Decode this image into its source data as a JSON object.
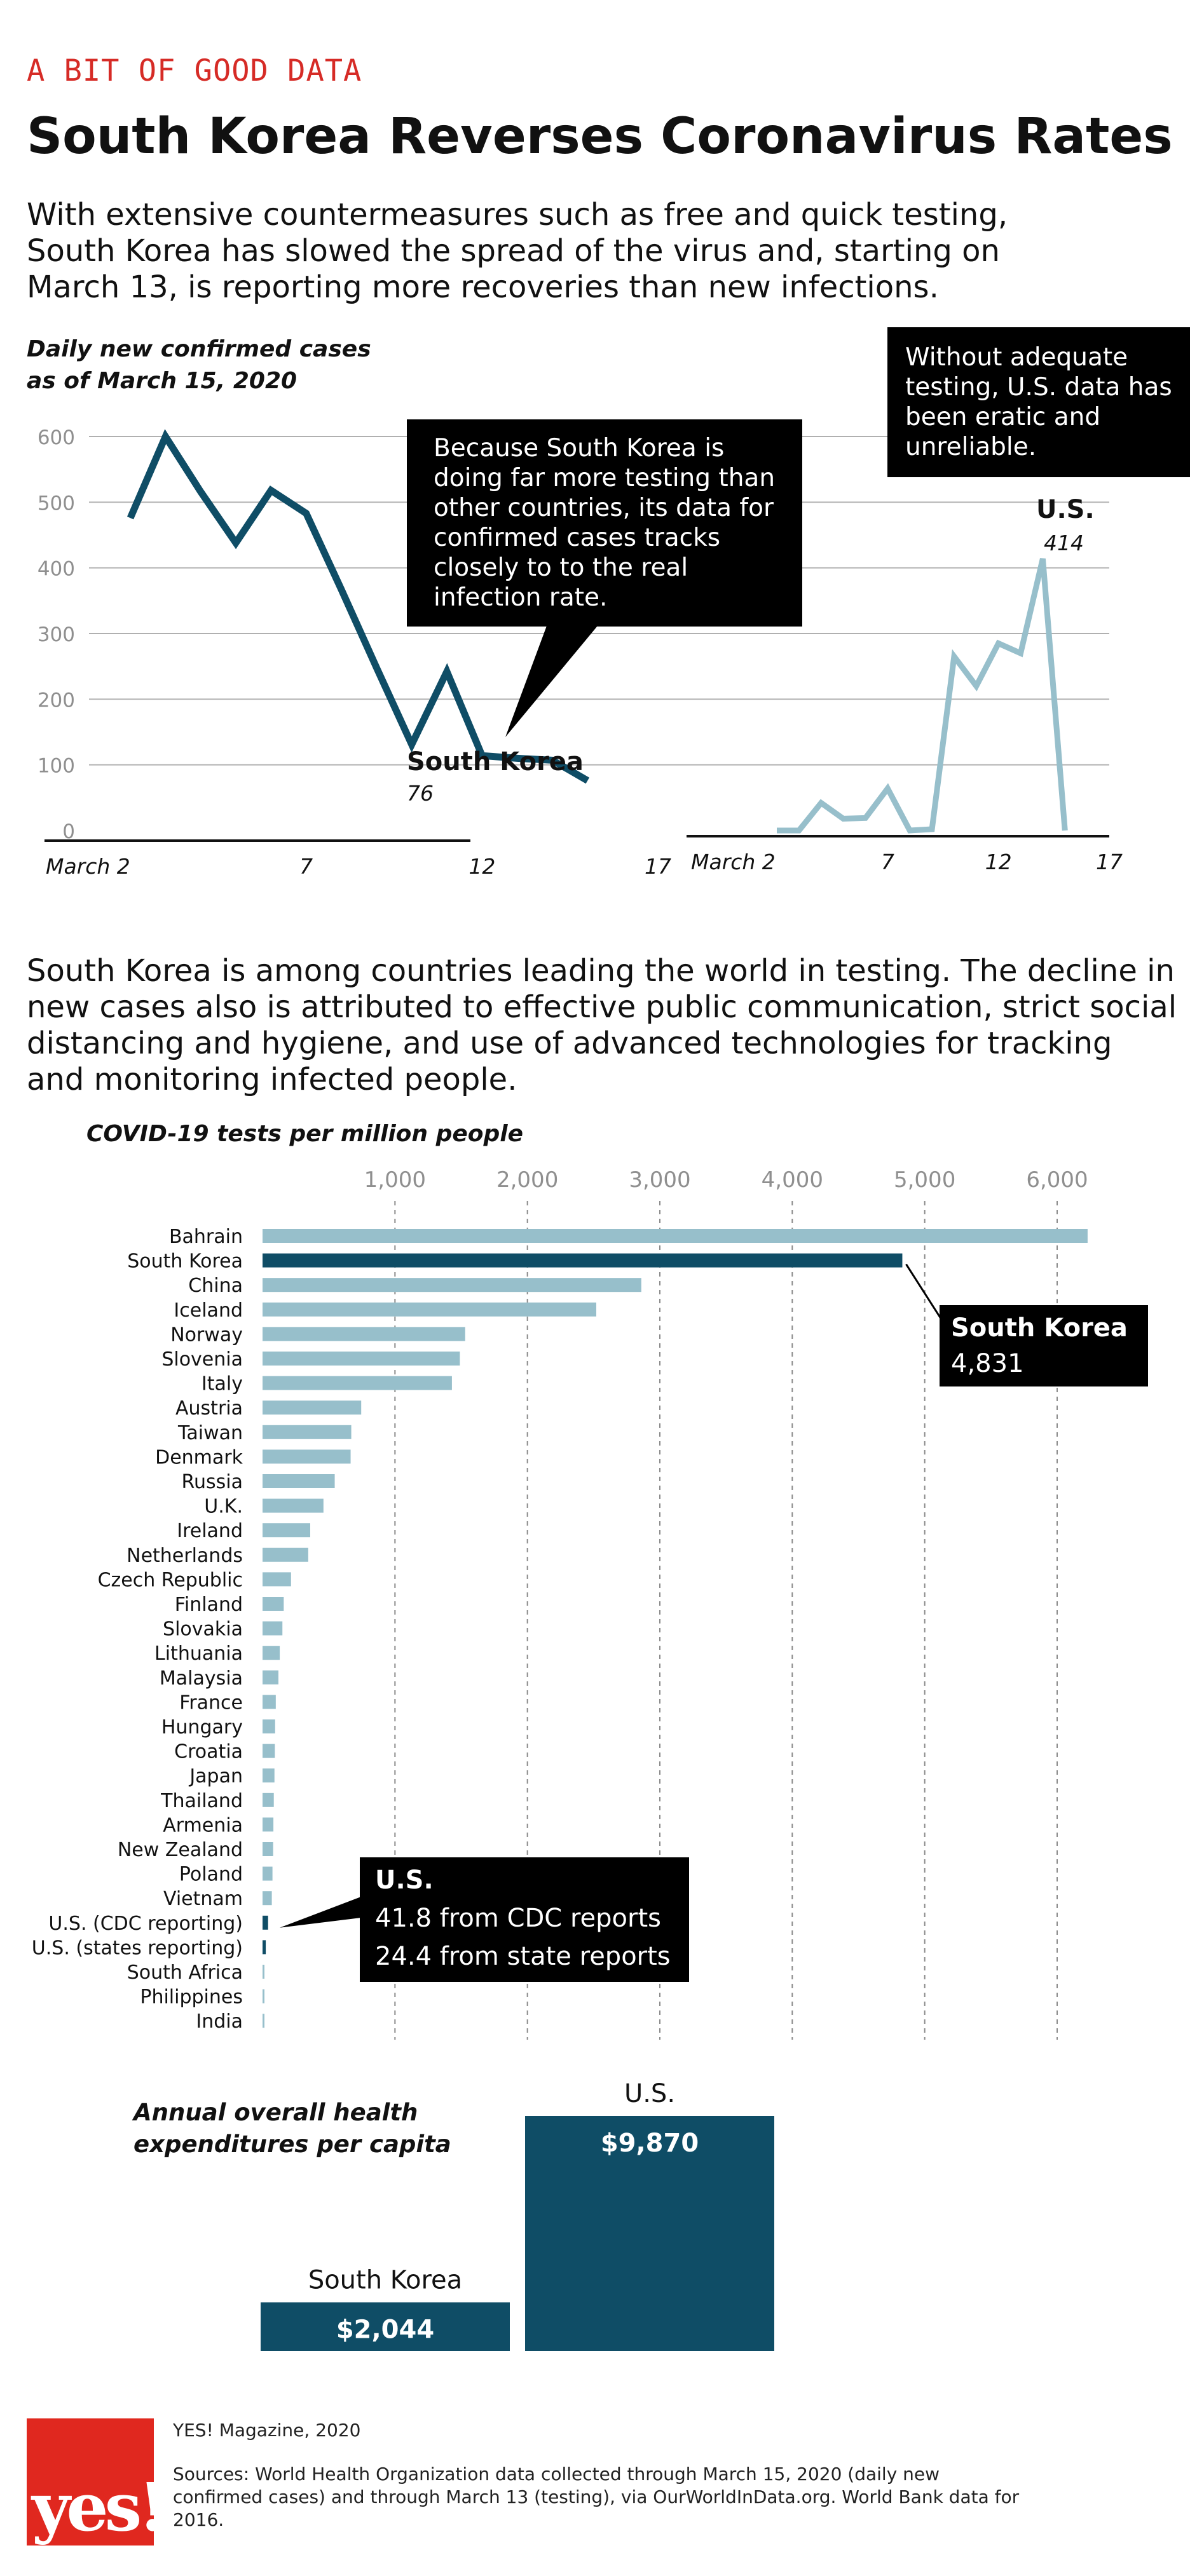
{
  "kicker": "A BIT OF GOOD DATA",
  "title": "South Korea Reverses Coronavirus Rates",
  "intro": "With extensive countermeasures such as free and quick testing, South Korea has slowed the spread of the virus and, starting on March 13, is reporting more recoveries than new infections.",
  "daily_chart": {
    "subtitle_line1": "Daily new confirmed cases",
    "subtitle_line2": "as of March 15, 2020",
    "callout_sk": "Because South Korea is doing far more testing than other countries, its data for confirmed cases tracks closely to to the real infection rate.",
    "callout_us": "Without adequate testing, U.S. data has been eratic and unreliable.",
    "sk_label": "South Korea",
    "sk_last": "76",
    "us_label": "U.S.",
    "us_peak": "414"
  },
  "paragraph2": "South Korea is among countries leading the world in testing. The decline in new cases also is attributed to effective public communication, strict social distancing and hygiene, and use of advanced technologies for tracking and monitoring infected people.",
  "tests_chart": {
    "subtitle": "COVID-19 tests per million people",
    "callout_sk_title": "South Korea",
    "callout_sk_value": "4,831",
    "callout_us_title": "U.S.",
    "callout_us_line1": "41.8 from CDC reports",
    "callout_us_line2": "24.4 from state reports"
  },
  "health_chart": {
    "subtitle_line1": "Annual overall health",
    "subtitle_line2": "expenditures per capita",
    "sk_label": "South Korea",
    "sk_value": "$2,044",
    "us_label": "U.S.",
    "us_value": "$9,870"
  },
  "footer": {
    "logo": "yes!",
    "publisher": "YES! Magazine, 2020",
    "sources": "Sources: World Health Organization data collected through March 15, 2020 (daily new confirmed cases) and through March 13 (testing), via OurWorldInData.org. World Bank data for 2016."
  },
  "colors": {
    "dark": "#0f4d66",
    "light": "#97bfcb",
    "red": "#d62b26",
    "grid": "#aaaaaa"
  },
  "chart_data": [
    {
      "type": "line",
      "title": "Daily new confirmed cases",
      "subtitle": "as of March 15, 2020",
      "xlabel": "",
      "ylabel": "",
      "ylim": [
        0,
        600
      ],
      "yticks": [
        0,
        100,
        200,
        300,
        400,
        500,
        600
      ],
      "xticks": [
        {
          "x": 2,
          "label": "March 2"
        },
        {
          "x": 7,
          "label": "7"
        },
        {
          "x": 12,
          "label": "12"
        },
        {
          "x": 17,
          "label": "17"
        }
      ],
      "series": [
        {
          "name": "South Korea",
          "color": "#0f4d66",
          "x": [
            2,
            3,
            4,
            5,
            6,
            7,
            8,
            9,
            10,
            11,
            12,
            13,
            14,
            15
          ],
          "y": [
            476,
            600,
            516,
            438,
            518,
            483,
            367,
            248,
            131,
            242,
            114,
            110,
            107,
            76
          ]
        },
        {
          "name": "U.S.",
          "color": "#97bfcb",
          "x": [
            2,
            3,
            4,
            5,
            6,
            7,
            8,
            9,
            10,
            11,
            12,
            13,
            14,
            15
          ],
          "y": [
            0,
            0,
            42,
            18,
            19,
            64,
            0,
            2,
            265,
            220,
            285,
            270,
            414,
            0
          ]
        }
      ]
    },
    {
      "type": "bar",
      "title": "COVID-19 tests per million people",
      "orientation": "horizontal",
      "xlim": [
        0,
        6300
      ],
      "xticks": [
        1000,
        2000,
        3000,
        4000,
        5000,
        6000
      ],
      "xtick_labels": [
        "1,000",
        "2,000",
        "3,000",
        "4,000",
        "5,000",
        "6,000"
      ],
      "categories": [
        "Bahrain",
        "South Korea",
        "China",
        "Iceland",
        "Norway",
        "Slovenia",
        "Italy",
        "Austria",
        "Taiwan",
        "Denmark",
        "Russia",
        "U.K.",
        "Ireland",
        "Netherlands",
        "Czech Republic",
        "Finland",
        "Slovakia",
        "Lithuania",
        "Malaysia",
        "France",
        "Hungary",
        "Croatia",
        "Japan",
        "Thailand",
        "Armenia",
        "New Zealand",
        "Poland",
        "Vietnam",
        "U.S. (CDC reporting)",
        "U.S. (states reporting)",
        "South Africa",
        "Philippines",
        "India"
      ],
      "values": [
        6230,
        4831,
        2860,
        2520,
        1530,
        1490,
        1430,
        745,
        670,
        665,
        545,
        460,
        360,
        345,
        215,
        160,
        150,
        130,
        120,
        100,
        95,
        93,
        90,
        85,
        82,
        80,
        75,
        70,
        41.8,
        24.4,
        10,
        8,
        6
      ],
      "highlight": [
        "South Korea",
        "U.S. (CDC reporting)",
        "U.S. (states reporting)"
      ]
    },
    {
      "type": "bar",
      "title": "Annual overall health expenditures per capita",
      "categories": [
        "South Korea",
        "U.S."
      ],
      "values": [
        2044,
        9870
      ],
      "value_labels": [
        "$2,044",
        "$9,870"
      ]
    }
  ]
}
